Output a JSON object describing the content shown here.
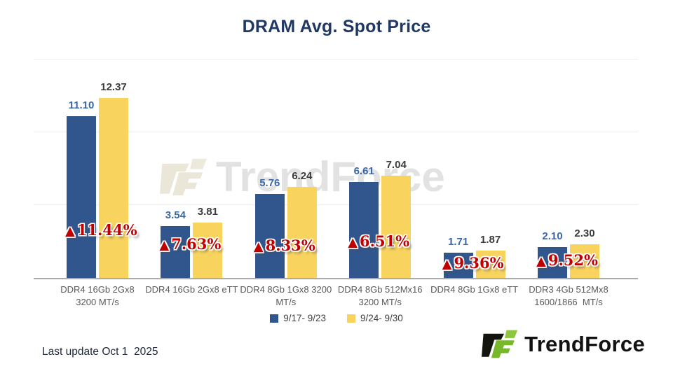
{
  "watermark": "TrendForce",
  "footer": {
    "last_update": "Last update Oct 1  2025",
    "logo_text": "TrendForce"
  },
  "colors": {
    "title": "#1f3864",
    "series1_blue": "#31568d",
    "series2_yellow": "#f8d45f",
    "change_red": "#c00000",
    "logo_green": "#76b82a",
    "logo_light_green": "#8ec63f",
    "logo_black": "#14140f",
    "axis_line": "#ababab",
    "gridline": "#ededed"
  },
  "chart_data": {
    "type": "bar",
    "title": "DRAM Avg. Spot Price",
    "categories": [
      [
        "DDR4 16Gb 2Gx8",
        "3200 MT/s"
      ],
      [
        "DDR4 16Gb 2Gx8 eTT"
      ],
      [
        "DDR4 8Gb 1Gx8 3200",
        "MT/s"
      ],
      [
        "DDR4 8Gb 512Mx16",
        "3200 MT/s"
      ],
      [
        "DDR4 8Gb 1Gx8 eTT"
      ],
      [
        "DDR3 4Gb 512Mx8",
        "1600/1866  MT/s"
      ]
    ],
    "series": [
      {
        "name": "9/17- 9/23",
        "color": "#31568d",
        "values": [
          "11.10",
          "3.54",
          "5.76",
          "6.61",
          "1.71",
          "2.10"
        ]
      },
      {
        "name": "9/24- 9/30",
        "color": "#f8d45f",
        "values": [
          "12.37",
          "3.81",
          "6.24",
          "7.04",
          "1.87",
          "2.30"
        ]
      }
    ],
    "change_marker": "▲",
    "change_values": [
      "11.44%",
      "7.63%",
      "8.33%",
      "6.51%",
      "9.36%",
      "9.52%"
    ],
    "xlabel": "",
    "ylabel": "",
    "ylim": [
      0,
      15
    ],
    "gridline_values": [
      5,
      10,
      15
    ],
    "grid": true,
    "legend_position": "bottom"
  }
}
